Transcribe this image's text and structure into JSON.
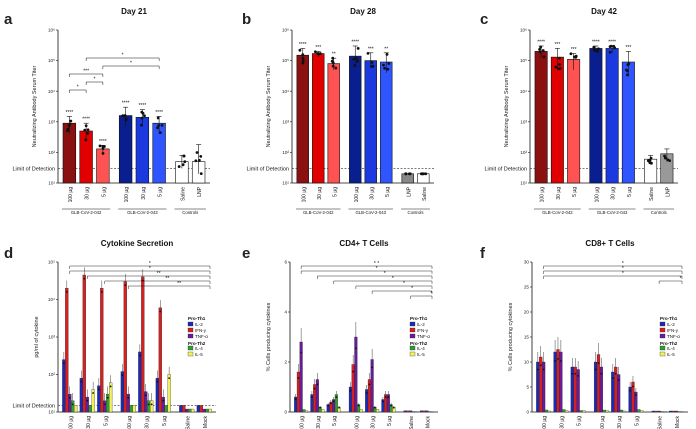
{
  "chart_data": [
    {
      "panel": "a",
      "type": "bar",
      "title": "Day 21",
      "ylabel": "Neutralizing Antibody Serum Titer",
      "ylim": [
        10,
        1000000
      ],
      "yscale": "log",
      "lod": 30,
      "lod_label": "Limit of Detection",
      "tick_labels": [
        "10¹",
        "10²",
        "10³",
        "10⁴",
        "10⁵",
        "10⁶"
      ],
      "categories": [
        "100 µg",
        "30 µg",
        "5 µg",
        "100 µg",
        "30 µg",
        "5 µg",
        "Saline",
        "LNP"
      ],
      "values": [
        900,
        500,
        130,
        1600,
        1400,
        900,
        50,
        50
      ],
      "errors": [
        [
          400,
          1500
        ],
        [
          250,
          900
        ],
        [
          90,
          170
        ],
        [
          700,
          3000
        ],
        [
          700,
          2500
        ],
        [
          400,
          1500
        ],
        [
          30,
          80
        ],
        [
          20,
          180
        ]
      ],
      "colors": [
        "#8b1010",
        "#e00000",
        "#ff5252",
        "#0a1f8f",
        "#1a3ae0",
        "#2f55ff",
        "#ffffff",
        "#ffffff"
      ],
      "significance": [
        "****",
        "****",
        "****",
        "****",
        "****",
        "****",
        "",
        ""
      ],
      "groups": [
        {
          "label": "GLB-CoV-2-042",
          "from": 0,
          "to": 2
        },
        {
          "label": "GLB-CoV-2-043",
          "from": 3,
          "to": 5
        },
        {
          "label": "Controls",
          "from": 6,
          "to": 7
        }
      ],
      "brackets": [
        {
          "from": 0,
          "to": 1,
          "text": "*"
        },
        {
          "from": 1,
          "to": 2,
          "text": "*"
        },
        {
          "from": 0,
          "to": 2,
          "text": "***"
        },
        {
          "from": 2,
          "to": 5,
          "text": "*"
        },
        {
          "from": 1,
          "to": 5,
          "text": "*"
        }
      ]
    },
    {
      "panel": "b",
      "type": "bar",
      "title": "Day 28",
      "ylabel": "Neutralizing Antibody Serum Titer",
      "ylim": [
        10,
        1000000
      ],
      "yscale": "log",
      "lod": 30,
      "lod_label": "Limit of Detection",
      "tick_labels": [
        "10¹",
        "10²",
        "10³",
        "10⁴",
        "10⁵",
        "10⁶"
      ],
      "categories": [
        "100 µg",
        "30 µg",
        "5 µg",
        "100 µg",
        "30 µg",
        "5 µg",
        "LNP",
        "Saline"
      ],
      "values": [
        150000,
        170000,
        80000,
        140000,
        100000,
        90000,
        20,
        20
      ],
      "errors": [
        [
          80000,
          250000
        ],
        [
          130000,
          200000
        ],
        [
          50000,
          120000
        ],
        [
          60000,
          300000
        ],
        [
          60000,
          180000
        ],
        [
          40000,
          180000
        ],
        [
          20,
          20
        ],
        [
          20,
          20
        ]
      ],
      "colors": [
        "#8b1010",
        "#e00000",
        "#ff5252",
        "#0a1f8f",
        "#1a3ae0",
        "#2f55ff",
        "#888888",
        "#ffffff"
      ],
      "significance": [
        "****",
        "***",
        "**",
        "****",
        "***",
        "**",
        "",
        ""
      ],
      "groups": [
        {
          "label": "GLB-CoV-2-042",
          "from": 0,
          "to": 2
        },
        {
          "label": "GLB-CoV-2-043",
          "from": 3,
          "to": 5
        },
        {
          "label": "Controls",
          "from": 6,
          "to": 7
        }
      ],
      "brackets": []
    },
    {
      "panel": "c",
      "type": "bar",
      "title": "Day 42",
      "ylabel": "Neutralizing Antibody Serum Titer",
      "ylim": [
        10,
        1000000
      ],
      "yscale": "log",
      "lod": 30,
      "lod_label": "Limit of Detection",
      "tick_labels": [
        "10¹",
        "10²",
        "10³",
        "10⁴",
        "10⁵",
        "10⁶"
      ],
      "categories": [
        "100 µg",
        "30 µg",
        "5 µg",
        "100 µg",
        "30 µg",
        "5 µg",
        "Saline",
        "LNP"
      ],
      "values": [
        200000,
        130000,
        110000,
        250000,
        250000,
        90000,
        60,
        90
      ],
      "errors": [
        [
          120000,
          300000
        ],
        [
          50000,
          250000
        ],
        [
          50000,
          170000
        ],
        [
          180000,
          300000
        ],
        [
          180000,
          300000
        ],
        [
          30000,
          200000
        ],
        [
          40,
          80
        ],
        [
          50,
          130
        ]
      ],
      "colors": [
        "#8b1010",
        "#e00000",
        "#ff5252",
        "#0a1f8f",
        "#1a3ae0",
        "#2f55ff",
        "#ffffff",
        "#999999"
      ],
      "significance": [
        "****",
        "***",
        "***",
        "****",
        "****",
        "***",
        "",
        ""
      ],
      "groups": [
        {
          "label": "GLB-CoV-2-042",
          "from": 0,
          "to": 2
        },
        {
          "label": "GLB-CoV-2-043",
          "from": 3,
          "to": 5
        },
        {
          "label": "Controls",
          "from": 6,
          "to": 7
        }
      ],
      "brackets": []
    },
    {
      "panel": "d",
      "type": "grouped-bar",
      "title": "Cytokine Secretion",
      "ylabel": "pg/ml of cytokine",
      "ylim": [
        10,
        100000
      ],
      "yscale": "log",
      "lod": 15,
      "lod_label": "Limit of Detection",
      "tick_labels": [
        "10¹",
        "10²",
        "10³",
        "10⁴",
        "10⁵"
      ],
      "categories": [
        "100 µg",
        "30 µg",
        "5 µg",
        "100 µg",
        "30 µg",
        "5 µg",
        "Saline",
        "Mock"
      ],
      "series": [
        {
          "name": "IL-2",
          "color": "#1a2bb5",
          "values": [
            250,
            80,
            50,
            120,
            400,
            80,
            15,
            15
          ]
        },
        {
          "name": "IFN-γ",
          "color": "#d42020",
          "values": [
            20000,
            45000,
            20000,
            30000,
            40000,
            6000,
            15,
            15
          ]
        },
        {
          "name": "TNF-α",
          "color": "#6a1b9a",
          "values": [
            30,
            25,
            20,
            30,
            35,
            25,
            12,
            12
          ]
        },
        {
          "name": "IL-4",
          "color": "#2f9e2f",
          "values": [
            20,
            15,
            30,
            15,
            20,
            15,
            12,
            12
          ]
        },
        {
          "name": "IL-5",
          "color": "#f0f060",
          "values": [
            15,
            40,
            60,
            15,
            20,
            100,
            12,
            12
          ]
        }
      ],
      "legend_headers": [
        "Pro-Th1",
        "Pro-Th2"
      ],
      "groups": [
        {
          "label": "GLB-COV2-042",
          "from": 0,
          "to": 2
        },
        {
          "label": "GLB-COV2-043",
          "from": 3,
          "to": 5
        },
        {
          "label": "Controls",
          "from": 6,
          "to": 7
        }
      ],
      "brackets": [
        {
          "from": 0,
          "to": 7,
          "text": "*"
        },
        {
          "from": 0,
          "to": 7,
          "text": "*"
        },
        {
          "from": 1,
          "to": 7,
          "text": "**"
        },
        {
          "from": 2,
          "to": 7,
          "text": "**"
        },
        {
          "from": 3,
          "to": 7,
          "text": "**"
        }
      ]
    },
    {
      "panel": "e",
      "type": "grouped-bar",
      "title": "CD4+ T Cells",
      "ylabel": "% Cells producing cytokines",
      "ylim": [
        0,
        6
      ],
      "yscale": "linear",
      "tick_labels": [
        "0",
        "2",
        "4",
        "6"
      ],
      "categories": [
        "100 µg",
        "30 µg",
        "5 µg",
        "100 µg",
        "30 µg",
        "5 µg",
        "Saline",
        "Mock"
      ],
      "series": [
        {
          "name": "IL-2",
          "color": "#1a2bb5",
          "values": [
            0.6,
            0.7,
            0.3,
            1.0,
            0.9,
            0.5,
            0.05,
            0.05
          ]
        },
        {
          "name": "IFN-γ",
          "color": "#d42020",
          "values": [
            1.6,
            1.1,
            0.4,
            1.9,
            1.3,
            0.7,
            0.05,
            0.05
          ]
        },
        {
          "name": "TNF-α",
          "color": "#6a1b9a",
          "values": [
            2.8,
            1.3,
            0.5,
            3.0,
            2.1,
            0.7,
            0.05,
            0.05
          ]
        },
        {
          "name": "IL-4",
          "color": "#2f9e2f",
          "values": [
            0.1,
            0.2,
            0.7,
            0.3,
            0.2,
            0.3,
            0.02,
            0.02
          ]
        },
        {
          "name": "IL-5",
          "color": "#f0f060",
          "values": [
            0.05,
            0.1,
            0.2,
            0.1,
            0.1,
            0.2,
            0.02,
            0.02
          ]
        }
      ],
      "legend_headers": [
        "Pro-Th1",
        "Pro-Th2"
      ],
      "groups": [
        {
          "label": "GLB-COV2-042",
          "from": 0,
          "to": 2
        },
        {
          "label": "GLB-COV2-043",
          "from": 3,
          "to": 5
        },
        {
          "label": "Controls",
          "from": 6,
          "to": 7
        }
      ],
      "brackets": [
        {
          "from": 0,
          "to": 7,
          "text": "* *"
        },
        {
          "from": 0,
          "to": 7,
          "text": "*"
        },
        {
          "from": 1,
          "to": 7,
          "text": "*"
        },
        {
          "from": 2,
          "to": 7,
          "text": "*"
        },
        {
          "from": 3,
          "to": 7,
          "text": "*"
        },
        {
          "from": 4,
          "to": 7,
          "text": "*"
        },
        {
          "from": 6,
          "to": 7,
          "text": "*"
        }
      ]
    },
    {
      "panel": "f",
      "type": "grouped-bar",
      "title": "CD8+ T Cells",
      "ylabel": "% Cells producing cytokines",
      "ylim": [
        0,
        30
      ],
      "yscale": "linear",
      "tick_labels": [
        "0",
        "5",
        "10",
        "15",
        "20",
        "25",
        "30"
      ],
      "categories": [
        "100 µg",
        "30 µg",
        "5 µg",
        "100 µg",
        "30 µg",
        "5 µg",
        "Saline",
        "Mock"
      ],
      "series": [
        {
          "name": "IL-2",
          "color": "#1a2bb5",
          "values": [
            10,
            12,
            9,
            10,
            8,
            5,
            0.2,
            0.2
          ]
        },
        {
          "name": "IFN-γ",
          "color": "#d42020",
          "values": [
            11,
            12.5,
            9,
            11.5,
            9,
            6,
            0.2,
            0.2
          ]
        },
        {
          "name": "TNF-α",
          "color": "#6a1b9a",
          "values": [
            10,
            12,
            8.5,
            9,
            7.5,
            4,
            0.2,
            0.2
          ]
        },
        {
          "name": "IL-4",
          "color": "#2f9e2f",
          "values": [
            0.4,
            0.5,
            0.3,
            0.4,
            0.4,
            0.5,
            0.1,
            0.1
          ]
        },
        {
          "name": "IL-5",
          "color": "#f0f060",
          "values": [
            0.2,
            0.3,
            0.3,
            0.3,
            0.2,
            0.3,
            0.1,
            0.1
          ]
        }
      ],
      "legend_headers": [
        "Pro-Th1",
        "Pro-Th2"
      ],
      "groups": [
        {
          "label": "GLB-COV2-042",
          "from": 0,
          "to": 2
        },
        {
          "label": "GLB-COV2-043",
          "from": 3,
          "to": 5
        },
        {
          "label": "Controls",
          "from": 6,
          "to": 7
        }
      ],
      "brackets": [
        {
          "from": 0,
          "to": 7,
          "text": "*"
        },
        {
          "from": 0,
          "to": 7,
          "text": "*"
        },
        {
          "from": 0,
          "to": 7,
          "text": "*"
        },
        {
          "from": 6,
          "to": 7,
          "text": "*"
        }
      ]
    }
  ],
  "panel_labels": [
    "a",
    "b",
    "c",
    "d",
    "e",
    "f"
  ]
}
